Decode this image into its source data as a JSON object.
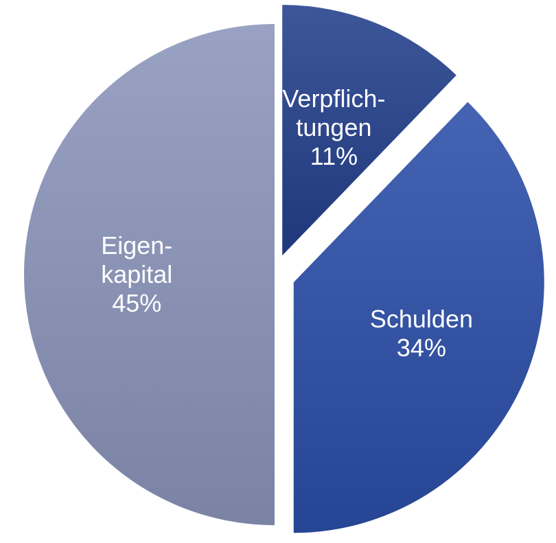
{
  "chart_data": {
    "type": "pie",
    "categories": [
      "Verpflich-\ntungen",
      "Schulden",
      "Eigen-\nkapital"
    ],
    "values": [
      11,
      34,
      45
    ],
    "value_labels": [
      "11%",
      "34%",
      "45%"
    ],
    "colors": [
      "#233f8c",
      "#2b4ea8",
      "#8b95bb"
    ]
  }
}
